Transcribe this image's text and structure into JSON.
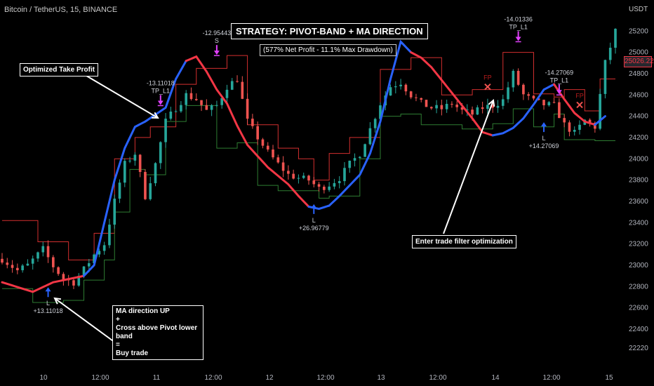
{
  "header": {
    "title": "Bitcoin / TetherUS, 15, BINANCE",
    "axis_unit": "USDT"
  },
  "strategy_title": "STRATEGY: PIVOT-BAND + MA DIRECTION",
  "strategy_stats": "(577% Net Profit - 11.1% Max Drawdown)",
  "notes": {
    "take_profit": "Optimized Take Profit",
    "filter": "Enter trade filter optimization",
    "buy_lines": [
      "MA direction UP",
      "+",
      "Cross above Pivot lower band",
      "=",
      "Buy trade"
    ]
  },
  "current_price": "25026.22",
  "colors": {
    "up_candle": "#26a69a",
    "down_candle": "#ef5350",
    "ma_up": "#2962ff",
    "ma_down": "#f23645",
    "upper_band": "#d32f2f",
    "lower_band": "#2e7d32",
    "trade_arrow_long": "#2962ff",
    "trade_arrow_exit": "#e040fb"
  },
  "chart_data": {
    "type": "candlestick",
    "symbol": "Bitcoin / TetherUS",
    "interval": "15",
    "exchange": "BINANCE",
    "y_axis": {
      "unit": "USDT",
      "ylim": [
        22050,
        25360
      ],
      "ticks": [
        25200,
        25000,
        24800,
        24600,
        24400,
        24200,
        24000,
        23800,
        23600,
        23400,
        23200,
        23000,
        22800,
        22600,
        22400,
        22220
      ]
    },
    "x_axis": {
      "ticks": [
        "10",
        "12:00",
        "11",
        "12:00",
        "12",
        "12:00",
        "13",
        "12:00",
        "14",
        "12:00",
        "15"
      ]
    },
    "price_keypoints": [
      [
        0,
        23060
      ],
      [
        3,
        22950
      ],
      [
        5,
        23000
      ],
      [
        8,
        23150
      ],
      [
        10,
        22990
      ],
      [
        12,
        22870
      ],
      [
        14,
        22840
      ],
      [
        16,
        22960
      ],
      [
        18,
        23100
      ],
      [
        20,
        23200
      ],
      [
        22,
        23600
      ],
      [
        24,
        23950
      ],
      [
        26,
        24050
      ],
      [
        27,
        23850
      ],
      [
        28,
        23650
      ],
      [
        30,
        23950
      ],
      [
        32,
        24350
      ],
      [
        34,
        24480
      ],
      [
        36,
        24600
      ],
      [
        38,
        24560
      ],
      [
        40,
        24450
      ],
      [
        42,
        24500
      ],
      [
        44,
        24680
      ],
      [
        46,
        24750
      ],
      [
        48,
        24350
      ],
      [
        50,
        24200
      ],
      [
        52,
        24060
      ],
      [
        54,
        23950
      ],
      [
        56,
        23850
      ],
      [
        58,
        23820
      ],
      [
        60,
        23800
      ],
      [
        62,
        23720
      ],
      [
        64,
        23760
      ],
      [
        66,
        23820
      ],
      [
        68,
        23950
      ],
      [
        70,
        24050
      ],
      [
        72,
        24280
      ],
      [
        74,
        24520
      ],
      [
        76,
        24680
      ],
      [
        78,
        24720
      ],
      [
        80,
        24600
      ],
      [
        82,
        24520
      ],
      [
        84,
        24480
      ],
      [
        86,
        24470
      ],
      [
        88,
        24520
      ],
      [
        90,
        24450
      ],
      [
        92,
        24420
      ],
      [
        94,
        24480
      ],
      [
        96,
        24500
      ],
      [
        98,
        24550
      ],
      [
        100,
        24800
      ],
      [
        102,
        24600
      ],
      [
        104,
        24540
      ],
      [
        106,
        24510
      ],
      [
        108,
        24500
      ],
      [
        110,
        24320
      ],
      [
        112,
        24240
      ],
      [
        114,
        24360
      ],
      [
        116,
        24300
      ],
      [
        118,
        24900
      ],
      [
        120,
        25200
      ]
    ],
    "ma_line": [
      [
        0,
        22840
      ],
      [
        6,
        22750
      ],
      [
        10,
        22840
      ],
      [
        16,
        22900
      ],
      [
        18,
        23000
      ],
      [
        20,
        23400
      ],
      [
        22,
        23800
      ],
      [
        24,
        24100
      ],
      [
        26,
        24300
      ],
      [
        28,
        24350
      ],
      [
        32,
        24480
      ],
      [
        34,
        24750
      ],
      [
        36,
        24920
      ],
      [
        38,
        24960
      ],
      [
        40,
        24820
      ],
      [
        42,
        24650
      ],
      [
        44,
        24520
      ],
      [
        46,
        24310
      ],
      [
        48,
        24130
      ],
      [
        52,
        23920
      ],
      [
        56,
        23760
      ],
      [
        58,
        23650
      ],
      [
        60,
        23550
      ],
      [
        62,
        23530
      ],
      [
        64,
        23560
      ],
      [
        66,
        23650
      ],
      [
        70,
        23850
      ],
      [
        72,
        24050
      ],
      [
        74,
        24350
      ],
      [
        76,
        24750
      ],
      [
        78,
        25100
      ],
      [
        80,
        25000
      ],
      [
        82,
        24950
      ],
      [
        84,
        24860
      ],
      [
        86,
        24740
      ],
      [
        88,
        24620
      ],
      [
        90,
        24500
      ],
      [
        92,
        24380
      ],
      [
        94,
        24250
      ],
      [
        96,
        24220
      ],
      [
        98,
        24240
      ],
      [
        100,
        24290
      ],
      [
        102,
        24380
      ],
      [
        104,
        24510
      ],
      [
        106,
        24650
      ],
      [
        108,
        24700
      ],
      [
        110,
        24560
      ],
      [
        112,
        24430
      ],
      [
        114,
        24350
      ],
      [
        116,
        24320
      ],
      [
        118,
        24400
      ]
    ],
    "ma_segments": [
      {
        "from": 0,
        "to": 16,
        "direction": "down"
      },
      {
        "from": 16,
        "to": 36,
        "direction": "up"
      },
      {
        "from": 36,
        "to": 60,
        "direction": "down"
      },
      {
        "from": 60,
        "to": 80,
        "direction": "up"
      },
      {
        "from": 80,
        "to": 96,
        "direction": "down"
      },
      {
        "from": 96,
        "to": 108,
        "direction": "up"
      },
      {
        "from": 108,
        "to": 116,
        "direction": "down"
      },
      {
        "from": 116,
        "to": 118,
        "direction": "up"
      }
    ],
    "pivot_upper_band": [
      [
        0,
        23420
      ],
      [
        7,
        23220
      ],
      [
        13,
        23050
      ],
      [
        18,
        23300
      ],
      [
        22,
        24000
      ],
      [
        26,
        24200
      ],
      [
        29,
        24300
      ],
      [
        34,
        24700
      ],
      [
        38,
        24850
      ],
      [
        44,
        24970
      ],
      [
        48,
        24320
      ],
      [
        54,
        24100
      ],
      [
        58,
        24000
      ],
      [
        61,
        23800
      ],
      [
        64,
        24050
      ],
      [
        68,
        24200
      ],
      [
        74,
        24840
      ],
      [
        80,
        24950
      ],
      [
        86,
        24600
      ],
      [
        92,
        24650
      ],
      [
        96,
        24650
      ],
      [
        98,
        25000
      ],
      [
        104,
        24610
      ],
      [
        108,
        24580
      ],
      [
        110,
        24650
      ],
      [
        114,
        24450
      ],
      [
        117,
        24750
      ]
    ],
    "pivot_lower_band": [
      [
        0,
        22780
      ],
      [
        6,
        22650
      ],
      [
        12,
        22670
      ],
      [
        16,
        22860
      ],
      [
        20,
        23050
      ],
      [
        22,
        23500
      ],
      [
        25,
        23900
      ],
      [
        28,
        23850
      ],
      [
        32,
        24350
      ],
      [
        36,
        24500
      ],
      [
        42,
        24100
      ],
      [
        46,
        24150
      ],
      [
        50,
        23750
      ],
      [
        54,
        23700
      ],
      [
        58,
        23700
      ],
      [
        62,
        23630
      ],
      [
        64,
        23650
      ],
      [
        70,
        24000
      ],
      [
        74,
        24400
      ],
      [
        78,
        24420
      ],
      [
        82,
        24320
      ],
      [
        86,
        24320
      ],
      [
        90,
        24280
      ],
      [
        96,
        24330
      ],
      [
        100,
        24470
      ],
      [
        104,
        24300
      ],
      [
        108,
        24420
      ],
      [
        110,
        24180
      ],
      [
        116,
        24170
      ]
    ],
    "trades": [
      {
        "type": "entry",
        "label": "L",
        "pnl": "+13.11018",
        "bar": 9,
        "price": 22820
      },
      {
        "type": "exit",
        "label": "TP_L1",
        "pnl": "-13.11018",
        "bar": 31,
        "price": 24480
      },
      {
        "type": "exit",
        "label": "S",
        "pnl": "-12.95443",
        "bar": 42,
        "price": 24950
      },
      {
        "type": "entry",
        "label": "L",
        "pnl": "+26.96779",
        "bar": 61,
        "price": 23600
      },
      {
        "type": "exit",
        "label": "TP_L1",
        "pnl": "-14.01336",
        "bar": 101,
        "price": 25080
      },
      {
        "type": "filter",
        "label": "FP",
        "bar": 95,
        "price": 24650
      },
      {
        "type": "entry",
        "label": "L",
        "pnl": "+14.27069",
        "bar": 106,
        "price": 24370
      },
      {
        "type": "exit",
        "label": "TP_L1",
        "pnl": "-14.27069",
        "bar": 109,
        "price": 24580
      },
      {
        "type": "filter",
        "label": "FP",
        "bar": 113,
        "price": 24480
      }
    ]
  }
}
